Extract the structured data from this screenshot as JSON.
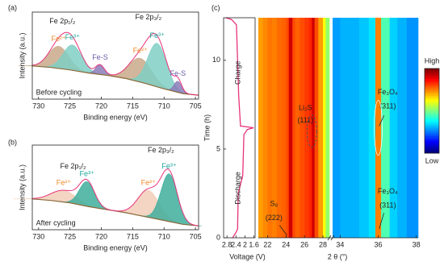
{
  "chart_data": [
    {
      "type": "xps",
      "panel": "(a)",
      "xlabel": "Binding energy (eV)",
      "ylabel": "Intensity (a.u.)",
      "xlim": [
        731,
        704.5
      ],
      "ylim": [
        0,
        1.1
      ],
      "xticks": [
        730,
        725,
        720,
        715,
        710,
        705
      ],
      "annotations": [
        "Fe 2p₁/₂",
        "Fe 2p₃/₂",
        "Before cycling"
      ],
      "background": {
        "color": "#8a6a3a",
        "x": [
          731,
          728,
          725,
          722,
          719,
          716,
          713,
          710,
          707,
          704.5
        ],
        "values": [
          0.42,
          0.4,
          0.37,
          0.33,
          0.3,
          0.26,
          0.2,
          0.13,
          0.07,
          0.05
        ]
      },
      "envelope_color": "#e8337a",
      "series": [
        {
          "name": "Fe²⁺",
          "color": "#c9a98a",
          "label_color": "#f08a2c",
          "center": 726.8,
          "height": 0.28,
          "width": 1.6
        },
        {
          "name": "Fe³⁺",
          "color": "#7fcfc4",
          "label_color": "#1aa59a",
          "center": 724.6,
          "height": 0.32,
          "width": 1.5
        },
        {
          "name": "Fe-S",
          "color": "#8b7bb8",
          "label_color": "#6b5aa8",
          "center": 720.2,
          "height": 0.12,
          "width": 0.7
        },
        {
          "name": "Fe²⁺",
          "color": "#c9a98a",
          "label_color": "#f08a2c",
          "center": 713.8,
          "height": 0.3,
          "width": 1.8
        },
        {
          "name": "Fe³⁺",
          "color": "#7fcfc4",
          "label_color": "#1aa59a",
          "center": 711.1,
          "height": 0.55,
          "width": 1.5
        },
        {
          "name": "Fe-S",
          "color": "#8b7bb8",
          "label_color": "#6b5aa8",
          "center": 707.8,
          "height": 0.14,
          "width": 0.6
        }
      ]
    },
    {
      "type": "xps",
      "panel": "(b)",
      "xlabel": "Binding energy (eV)",
      "ylabel": "Intensity (a.u.)",
      "xlim": [
        731,
        704.5
      ],
      "ylim": [
        0,
        1.1
      ],
      "xticks": [
        730,
        725,
        720,
        715,
        710,
        705
      ],
      "annotations": [
        "Fe 2p₁/₂",
        "Fe 2p₃/₂",
        "After cycling"
      ],
      "background": {
        "color": "#8a6a3a",
        "x": [
          731,
          728,
          725,
          722,
          719,
          716,
          713,
          710,
          707,
          704.5
        ],
        "values": [
          0.4,
          0.38,
          0.35,
          0.3,
          0.26,
          0.22,
          0.17,
          0.12,
          0.07,
          0.05
        ]
      },
      "envelope_color": "#e8337a",
      "series": [
        {
          "name": "Fe²⁺",
          "color": "#f2cdb8",
          "label_color": "#f08a2c",
          "center": 726,
          "height": 0.15,
          "width": 2
        },
        {
          "name": "Fe³⁺",
          "color": "#3fae9c",
          "label_color": "#1aa59a",
          "center": 722.3,
          "height": 0.32,
          "width": 1.2
        },
        {
          "name": "Fe²⁺",
          "color": "#f2cdb8",
          "label_color": "#f08a2c",
          "center": 712.5,
          "height": 0.35,
          "width": 1.7
        },
        {
          "name": "Fe³⁺",
          "color": "#3fae9c",
          "label_color": "#1aa59a",
          "center": 709.2,
          "height": 0.62,
          "width": 1.3
        }
      ]
    },
    {
      "type": "line",
      "panel": "(c)",
      "xlabel": "Voltage (V)",
      "ylabel": "Time (h)",
      "xlim": [
        2.95,
        1.55
      ],
      "ylim": [
        0,
        12.4
      ],
      "xticks": [
        2.8,
        2.4,
        2.0,
        1.6
      ],
      "yticks": [
        0,
        5,
        10
      ],
      "annotations": [
        "Charge",
        "Discharge"
      ],
      "series": [
        {
          "color": "#e8337a",
          "x": [
            2.55,
            2.4,
            2.33,
            2.3,
            2.1,
            2.05,
            1.9,
            1.62,
            2.2,
            2.28,
            2.33,
            2.38,
            2.6,
            2.85
          ],
          "values": [
            0,
            0.3,
            0.5,
            2.5,
            3.5,
            5.8,
            6.1,
            6.2,
            6.3,
            8,
            10,
            12,
            12.3,
            12.4
          ]
        }
      ]
    },
    {
      "type": "heatmap",
      "xlabel": "2 θ (°)",
      "ylim": [
        0,
        12.4
      ],
      "colormap": "jet",
      "colorbar_labels": [
        "High",
        "Low"
      ],
      "annotations": [
        "Li₂S",
        "(111)",
        "Fe₃O₄",
        "(311)",
        "Fe₃O₄",
        "(311)",
        "S₈",
        "(222)"
      ],
      "segments": [
        {
          "xlim": [
            21,
            28.7
          ],
          "xticks": [
            22,
            24,
            26,
            28
          ],
          "bins": [
            21,
            21.5,
            22,
            22.5,
            23,
            23.5,
            24,
            24.3,
            24.7,
            25,
            25.5,
            26,
            26.5,
            26.8,
            27.1,
            27.5,
            28,
            28.3,
            28.7
          ],
          "values": [
            0.72,
            0.74,
            0.76,
            0.75,
            0.77,
            0.78,
            0.8,
            0.92,
            0.8,
            0.78,
            0.8,
            0.82,
            0.84,
            0.92,
            0.8,
            0.72,
            0.62,
            0.52
          ]
        },
        {
          "xlim": [
            33.6,
            38.1
          ],
          "xticks": [
            34,
            36,
            38
          ],
          "bins": [
            33.6,
            34,
            34.5,
            35,
            35.5,
            35.85,
            36.15,
            36.6,
            37,
            37.5,
            38.1
          ],
          "values": [
            0.28,
            0.3,
            0.3,
            0.32,
            0.35,
            0.75,
            0.45,
            0.33,
            0.3,
            0.27
          ]
        }
      ]
    }
  ]
}
